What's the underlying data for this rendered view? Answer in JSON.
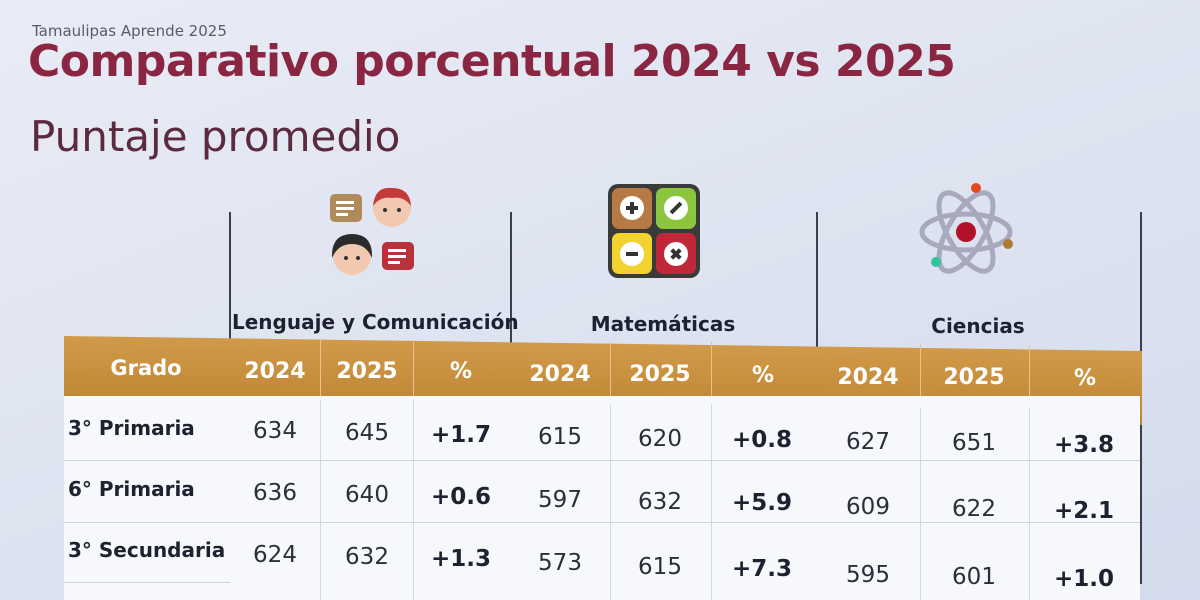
{
  "header": {
    "kicker": "Tamaulipas Aprende 2025",
    "title": "Comparativo porcentual  2024 vs 2025",
    "subtitle": "Puntaje promedio"
  },
  "subjects": [
    {
      "name": "Lenguaje y Comunicación",
      "icon": "people-chat-icon"
    },
    {
      "name": "Matemáticas",
      "icon": "calculator-operations-icon"
    },
    {
      "name": "Ciencias",
      "icon": "atom-icon"
    }
  ],
  "table": {
    "grade_header": "Grado",
    "col_2024": "2024",
    "col_2025": "2025",
    "col_pct": "%",
    "rows": [
      {
        "grade": "3° Primaria",
        "lenguaje": [
          "634",
          "645",
          "+1.7"
        ],
        "matematicas": [
          "615",
          "620",
          "+0.8"
        ],
        "ciencias": [
          "627",
          "651",
          "+3.8"
        ]
      },
      {
        "grade": "6° Primaria",
        "lenguaje": [
          "636",
          "640",
          "+0.6"
        ],
        "matematicas": [
          "597",
          "632",
          "+5.9"
        ],
        "ciencias": [
          "609",
          "622",
          "+2.1"
        ]
      },
      {
        "grade": "3° Secundaria",
        "lenguaje": [
          "624",
          "632",
          "+1.3"
        ],
        "matematicas": [
          "573",
          "615",
          "+7.3"
        ],
        "ciencias": [
          "595",
          "601",
          "+1.0"
        ]
      }
    ]
  },
  "colors": {
    "title": "#8a2641",
    "header_bar": "#c68d3c",
    "header_text": "#ffffff"
  }
}
